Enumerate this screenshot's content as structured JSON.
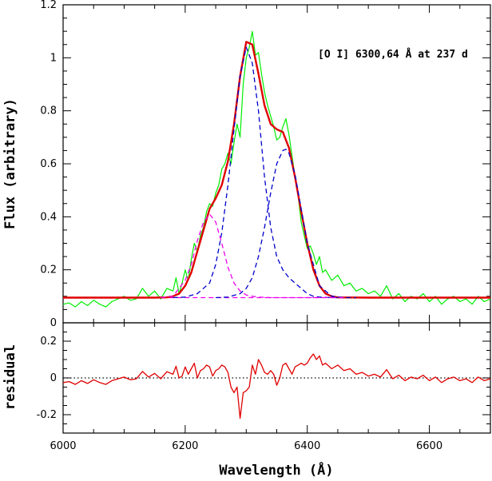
{
  "chart_data": [
    {
      "type": "line",
      "title": "",
      "annotation": "[O I] 6300,64 Å at 237 d",
      "xlabel": "Wavelength (Å)",
      "ylabel": "Flux (arbitrary)",
      "xlim": [
        6000,
        6700
      ],
      "ylim": [
        0,
        1.2
      ],
      "y_ticks": [
        0,
        0.2,
        0.4,
        0.6,
        0.8,
        1,
        1.2
      ],
      "y_tick_labels": [
        "0",
        "0.2",
        "0.4",
        "0.6",
        "0.8",
        "1",
        "1.2"
      ],
      "colors": {
        "observed": "#00ee00",
        "fit": "#e00000",
        "central_component": "#0000cc",
        "blue_component": "#ee00ee"
      },
      "continuum": 0.095,
      "series": [
        {
          "style": "solid-thin",
          "x": [
            6000,
            6010,
            6020,
            6030,
            6040,
            6050,
            6060,
            6070,
            6080,
            6090,
            6100,
            6110,
            6120,
            6130,
            6140,
            6150,
            6160,
            6170,
            6180,
            6185,
            6190,
            6195,
            6200,
            6205,
            6210,
            6215,
            6220,
            6225,
            6230,
            6235,
            6240,
            6245,
            6250,
            6255,
            6260,
            6265,
            6270,
            6275,
            6280,
            6285,
            6290,
            6295,
            6300,
            6305,
            6310,
            6315,
            6320,
            6325,
            6330,
            6335,
            6340,
            6345,
            6350,
            6355,
            6360,
            6365,
            6370,
            6375,
            6380,
            6385,
            6390,
            6395,
            6400,
            6405,
            6410,
            6415,
            6420,
            6425,
            6430,
            6440,
            6450,
            6460,
            6470,
            6480,
            6490,
            6500,
            6510,
            6520,
            6530,
            6540,
            6550,
            6560,
            6570,
            6580,
            6590,
            6600,
            6610,
            6620,
            6630,
            6640,
            6650,
            6660,
            6670,
            6680,
            6690,
            6700
          ],
          "y": [
            0.07,
            0.075,
            0.06,
            0.08,
            0.065,
            0.085,
            0.07,
            0.06,
            0.08,
            0.09,
            0.1,
            0.085,
            0.09,
            0.13,
            0.1,
            0.12,
            0.09,
            0.13,
            0.12,
            0.17,
            0.11,
            0.15,
            0.2,
            0.16,
            0.24,
            0.3,
            0.27,
            0.33,
            0.36,
            0.42,
            0.45,
            0.44,
            0.49,
            0.52,
            0.58,
            0.6,
            0.64,
            0.6,
            0.68,
            0.75,
            0.7,
            0.9,
            1.0,
            1.04,
            1.1,
            1.01,
            1.02,
            0.94,
            0.87,
            0.82,
            0.78,
            0.74,
            0.69,
            0.7,
            0.74,
            0.77,
            0.71,
            0.63,
            0.55,
            0.48,
            0.38,
            0.33,
            0.28,
            0.29,
            0.26,
            0.22,
            0.25,
            0.19,
            0.2,
            0.16,
            0.18,
            0.14,
            0.15,
            0.12,
            0.13,
            0.11,
            0.12,
            0.1,
            0.14,
            0.09,
            0.11,
            0.08,
            0.1,
            0.09,
            0.11,
            0.08,
            0.1,
            0.07,
            0.09,
            0.1,
            0.08,
            0.09,
            0.07,
            0.1,
            0.08,
            0.09
          ]
        },
        {
          "style": "solid-thick",
          "x": [
            6000,
            6050,
            6100,
            6150,
            6170,
            6180,
            6190,
            6200,
            6210,
            6220,
            6230,
            6240,
            6250,
            6260,
            6270,
            6280,
            6290,
            6300,
            6310,
            6320,
            6330,
            6340,
            6350,
            6360,
            6370,
            6380,
            6390,
            6400,
            6410,
            6420,
            6430,
            6440,
            6450,
            6500,
            6550,
            6600,
            6650,
            6700
          ],
          "y": [
            0.095,
            0.095,
            0.095,
            0.095,
            0.096,
            0.1,
            0.11,
            0.14,
            0.19,
            0.27,
            0.35,
            0.43,
            0.47,
            0.52,
            0.61,
            0.75,
            0.93,
            1.06,
            1.05,
            0.94,
            0.82,
            0.75,
            0.73,
            0.72,
            0.66,
            0.55,
            0.42,
            0.3,
            0.2,
            0.14,
            0.11,
            0.1,
            0.096,
            0.095,
            0.095,
            0.095,
            0.095,
            0.095
          ]
        },
        {
          "style": "dashed",
          "x": [
            6180,
            6200,
            6220,
            6240,
            6250,
            6260,
            6270,
            6280,
            6290,
            6300,
            6310,
            6320,
            6330,
            6340,
            6350,
            6360,
            6370,
            6380,
            6390,
            6400,
            6410,
            6420,
            6440,
            6460
          ],
          "y": [
            0.095,
            0.097,
            0.11,
            0.15,
            0.22,
            0.34,
            0.52,
            0.73,
            0.93,
            1.04,
            0.98,
            0.8,
            0.55,
            0.36,
            0.25,
            0.2,
            0.17,
            0.15,
            0.13,
            0.11,
            0.1,
            0.097,
            0.095,
            0.095
          ]
        },
        {
          "style": "dashed",
          "x": [
            6250,
            6270,
            6290,
            6300,
            6310,
            6320,
            6330,
            6340,
            6350,
            6360,
            6365,
            6370,
            6380,
            6390,
            6400,
            6420,
            6440,
            6460,
            6480
          ],
          "y": [
            0.095,
            0.097,
            0.11,
            0.13,
            0.17,
            0.25,
            0.36,
            0.49,
            0.6,
            0.65,
            0.655,
            0.64,
            0.56,
            0.43,
            0.3,
            0.14,
            0.1,
            0.095,
            0.095
          ]
        },
        {
          "style": "dashed",
          "x": [
            6160,
            6180,
            6200,
            6210,
            6220,
            6230,
            6240,
            6250,
            6260,
            6270,
            6280,
            6290,
            6300,
            6310,
            6320,
            6340,
            6360,
            6380,
            6420,
            6460
          ],
          "y": [
            0.095,
            0.1,
            0.16,
            0.22,
            0.31,
            0.38,
            0.41,
            0.38,
            0.3,
            0.21,
            0.15,
            0.12,
            0.105,
            0.1,
            0.097,
            0.095,
            0.095,
            0.095,
            0.095,
            0.095
          ]
        }
      ]
    },
    {
      "type": "line",
      "xlabel": "Wavelength (Å)",
      "ylabel": "residual",
      "xlim": [
        6000,
        6700
      ],
      "ylim": [
        -0.3,
        0.3
      ],
      "x_ticks": [
        6000,
        6200,
        6400,
        6600
      ],
      "x_tick_labels": [
        "6000",
        "6200",
        "6400",
        "6600"
      ],
      "y_ticks": [
        -0.2,
        0,
        0.2
      ],
      "y_tick_labels": [
        "-0.2",
        "0",
        "0.2"
      ],
      "zero_line": true,
      "series": [
        {
          "style": "solid",
          "x": [
            6000,
            6010,
            6020,
            6030,
            6040,
            6050,
            6060,
            6070,
            6080,
            6090,
            6100,
            6110,
            6120,
            6130,
            6140,
            6150,
            6160,
            6170,
            6180,
            6185,
            6190,
            6195,
            6200,
            6205,
            6210,
            6215,
            6220,
            6225,
            6230,
            6235,
            6240,
            6245,
            6250,
            6255,
            6260,
            6265,
            6270,
            6275,
            6280,
            6285,
            6290,
            6295,
            6300,
            6305,
            6310,
            6315,
            6320,
            6325,
            6330,
            6335,
            6340,
            6345,
            6350,
            6355,
            6360,
            6365,
            6370,
            6375,
            6380,
            6385,
            6390,
            6395,
            6400,
            6405,
            6410,
            6415,
            6420,
            6425,
            6430,
            6440,
            6450,
            6460,
            6470,
            6480,
            6490,
            6500,
            6510,
            6520,
            6530,
            6540,
            6550,
            6560,
            6570,
            6580,
            6590,
            6600,
            6610,
            6620,
            6630,
            6640,
            6650,
            6660,
            6670,
            6680,
            6690,
            6700
          ],
          "y": [
            -0.025,
            -0.02,
            -0.035,
            -0.015,
            -0.03,
            -0.01,
            -0.025,
            -0.035,
            -0.015,
            -0.005,
            0.005,
            -0.01,
            -0.005,
            0.035,
            0.005,
            0.025,
            -0.005,
            0.034,
            0.02,
            0.064,
            0.0,
            0.01,
            0.06,
            0.02,
            0.05,
            0.08,
            0.0,
            0.04,
            0.05,
            0.07,
            0.06,
            0.01,
            0.04,
            0.05,
            0.07,
            0.06,
            0.03,
            -0.05,
            -0.08,
            -0.05,
            -0.22,
            -0.08,
            -0.07,
            -0.05,
            0.07,
            0.02,
            0.1,
            0.07,
            0.03,
            0.02,
            0.04,
            0.02,
            -0.04,
            0.0,
            0.07,
            0.08,
            0.05,
            0.02,
            0.06,
            0.07,
            0.08,
            0.07,
            0.08,
            0.11,
            0.13,
            0.1,
            0.12,
            0.07,
            0.08,
            0.05,
            0.07,
            0.04,
            0.05,
            0.02,
            0.03,
            0.01,
            0.02,
            0.005,
            0.045,
            -0.005,
            0.015,
            -0.015,
            0.005,
            -0.005,
            0.015,
            -0.015,
            0.005,
            -0.025,
            -0.005,
            0.005,
            -0.015,
            -0.005,
            -0.025,
            0.005,
            -0.015,
            -0.005
          ]
        }
      ]
    }
  ]
}
